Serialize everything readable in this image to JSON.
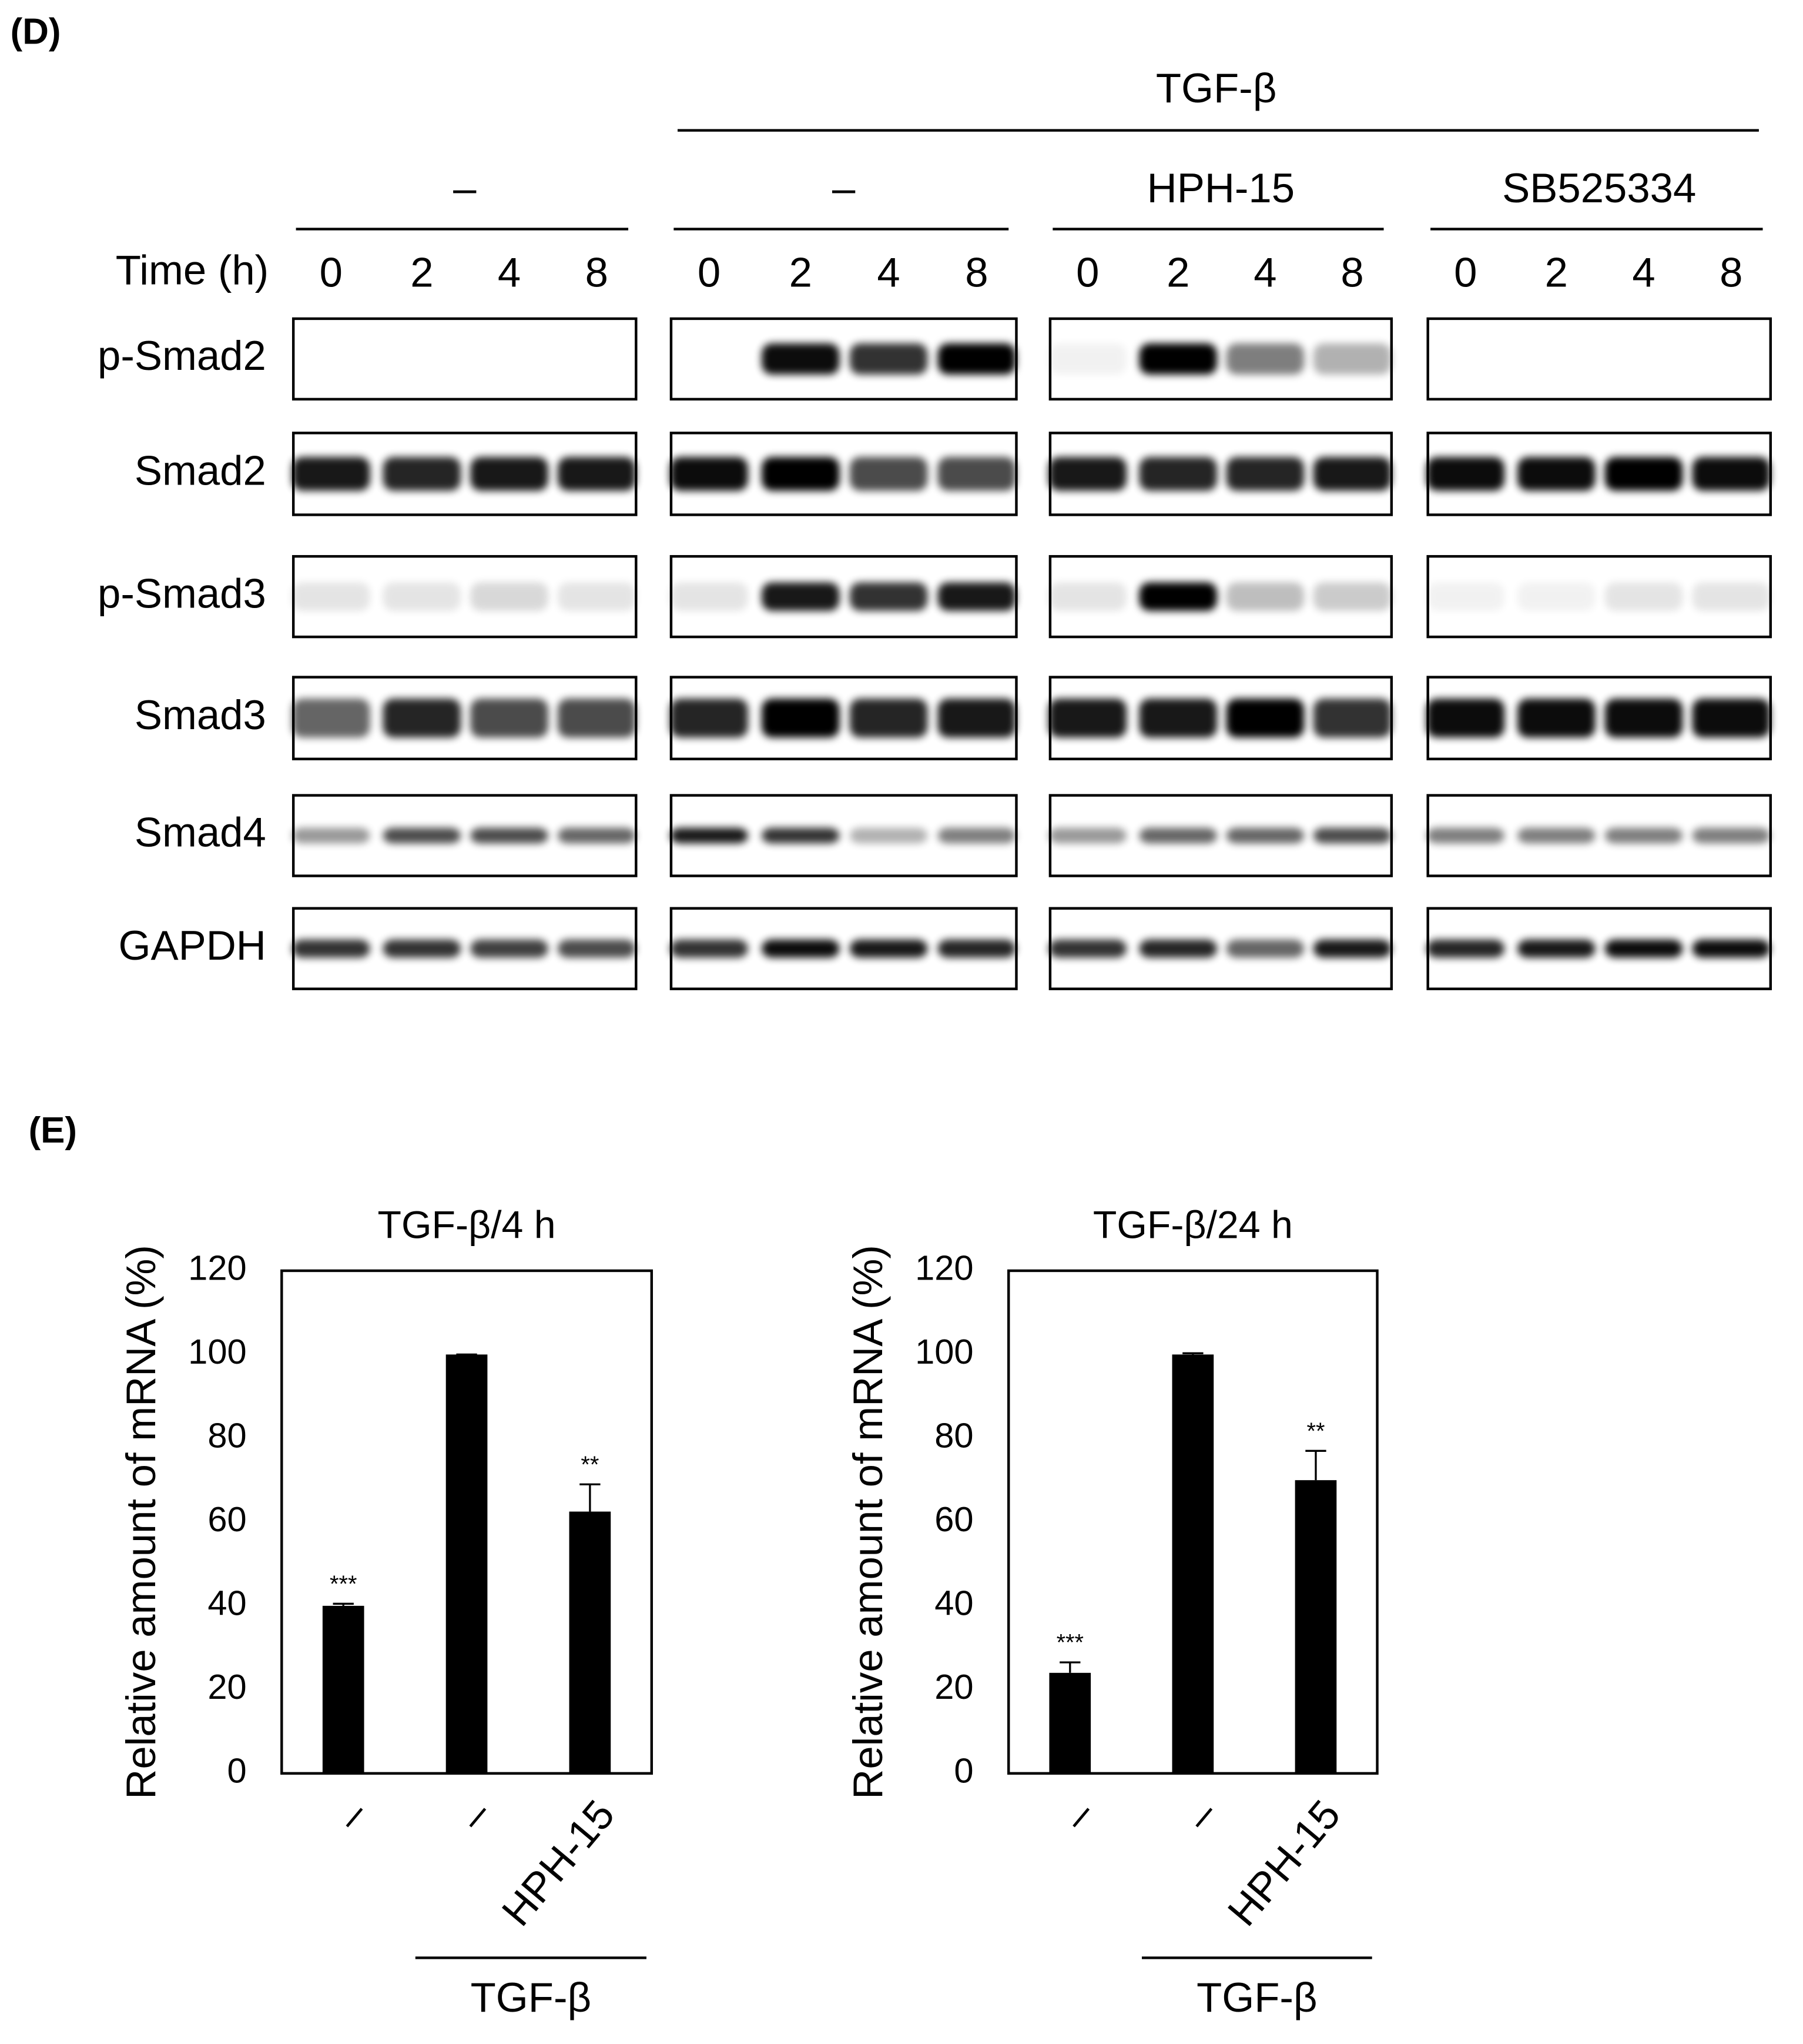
{
  "panel_d": {
    "label": "(D)",
    "treatment": "TGF-β",
    "time_label": "Time (h)",
    "groups": [
      {
        "label": "–",
        "times": [
          "0",
          "2",
          "4",
          "8"
        ]
      },
      {
        "label": "–",
        "times": [
          "0",
          "2",
          "4",
          "8"
        ]
      },
      {
        "label": "HPH-15",
        "times": [
          "0",
          "2",
          "4",
          "8"
        ]
      },
      {
        "label": "SB525334",
        "times": [
          "0",
          "2",
          "4",
          "8"
        ]
      }
    ],
    "proteins": [
      "p-Smad2",
      "Smad2",
      "p-Smad3",
      "Smad3",
      "Smad4",
      "GAPDH"
    ]
  },
  "panel_e": {
    "label": "(E)"
  },
  "chart_data": [
    {
      "type": "bar",
      "title": "TGF-β/4 h",
      "ylabel": "Relative amount of mRNA (%)",
      "categories": [
        "–",
        "–",
        "HPH-15"
      ],
      "values": [
        40,
        100,
        62.5
      ],
      "errors": [
        0.5,
        0,
        6.5
      ],
      "significance": [
        "***",
        null,
        "**"
      ],
      "group_label": "TGF-β",
      "color": "#000000",
      "ylim": [
        0,
        120
      ],
      "yticks": [
        0,
        20,
        40,
        60,
        80,
        100,
        120
      ]
    },
    {
      "type": "bar",
      "title": "TGF-β/24 h",
      "ylabel": "Relative amount of mRNA (%)",
      "categories": [
        "–",
        "–",
        "HPH-15"
      ],
      "values": [
        24,
        100,
        70
      ],
      "errors": [
        2.5,
        0.3,
        7
      ],
      "significance": [
        "***",
        null,
        "**"
      ],
      "group_label": "TGF-β",
      "color": "#000000",
      "ylim": [
        0,
        120
      ],
      "yticks": [
        0,
        20,
        40,
        60,
        80,
        100,
        120
      ]
    }
  ]
}
